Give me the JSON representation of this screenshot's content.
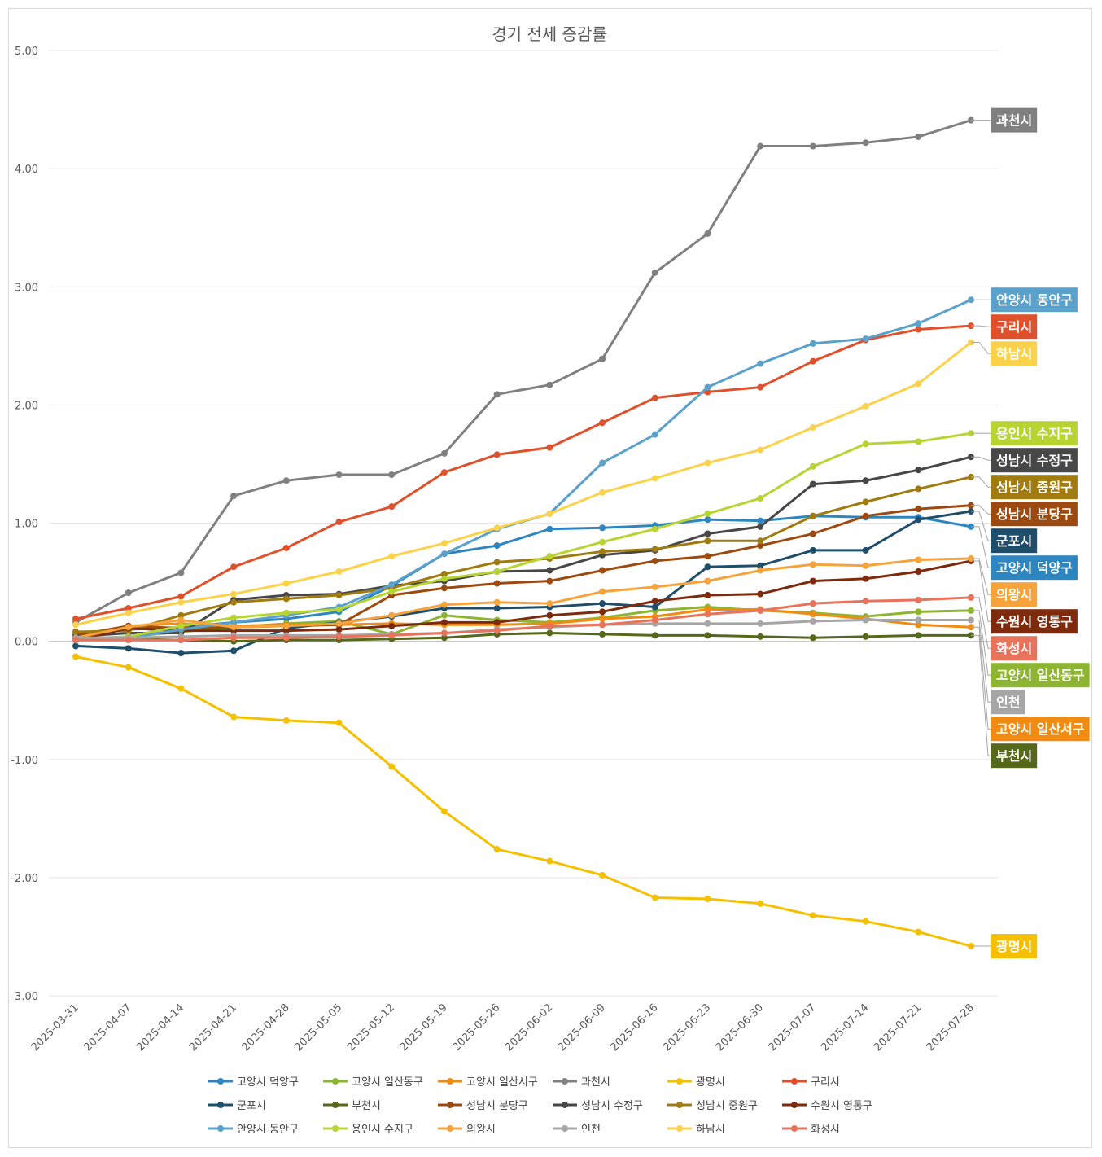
{
  "chart_data": {
    "type": "line",
    "title": "경기 전세 증감률",
    "xlabel": "",
    "ylabel": "",
    "ylim": [
      -3.0,
      5.0
    ],
    "yticks": [
      "5.00",
      "4.00",
      "3.00",
      "2.00",
      "1.00",
      "0.00",
      "-1.00",
      "-2.00",
      "-3.00"
    ],
    "grid": true,
    "legend_position": "bottom",
    "x": [
      "2025-03-31",
      "2025-04-07",
      "2025-04-14",
      "2025-04-21",
      "2025-04-28",
      "2025-05-05",
      "2025-05-12",
      "2025-05-19",
      "2025-05-26",
      "2025-06-02",
      "2025-06-09",
      "2025-06-16",
      "2025-06-23",
      "2025-06-30",
      "2025-07-07",
      "2025-07-14",
      "2025-07-21",
      "2025-07-28"
    ],
    "series": [
      {
        "name": "고양시 덕양구",
        "color": "#2e86c1",
        "values": [
          0.05,
          0.1,
          0.12,
          0.16,
          0.19,
          0.25,
          0.47,
          0.74,
          0.81,
          0.95,
          0.96,
          0.98,
          1.03,
          1.02,
          1.06,
          1.05,
          1.05,
          0.97
        ]
      },
      {
        "name": "고양시 일산동구",
        "color": "#8db531",
        "values": [
          0.02,
          0.04,
          0.08,
          0.12,
          0.15,
          0.17,
          0.06,
          0.22,
          0.18,
          0.16,
          0.2,
          0.26,
          0.29,
          0.26,
          0.24,
          0.21,
          0.25,
          0.26
        ]
      },
      {
        "name": "고양시 일산서구",
        "color": "#f28b12",
        "values": [
          0.05,
          0.13,
          0.15,
          0.13,
          0.14,
          0.14,
          0.15,
          0.14,
          0.14,
          0.15,
          0.19,
          0.21,
          0.27,
          0.27,
          0.23,
          0.19,
          0.14,
          0.12
        ]
      },
      {
        "name": "과천시",
        "color": "#808080",
        "values": [
          0.16,
          0.41,
          0.58,
          1.23,
          1.36,
          1.41,
          1.41,
          1.59,
          2.09,
          2.17,
          2.39,
          3.12,
          3.45,
          4.19,
          4.19,
          4.22,
          4.27,
          4.41
        ]
      },
      {
        "name": "광명시",
        "color": "#f5c000",
        "values": [
          -0.13,
          -0.22,
          -0.4,
          -0.64,
          -0.67,
          -0.69,
          -1.06,
          -1.44,
          -1.76,
          -1.86,
          -1.98,
          -2.17,
          -2.18,
          -2.22,
          -2.32,
          -2.37,
          -2.46,
          -2.58
        ]
      },
      {
        "name": "구리시",
        "color": "#e0502a",
        "values": [
          0.19,
          0.28,
          0.38,
          0.63,
          0.79,
          1.01,
          1.14,
          1.43,
          1.58,
          1.64,
          1.85,
          2.06,
          2.11,
          2.15,
          2.37,
          2.55,
          2.64,
          2.67
        ]
      },
      {
        "name": "군포시",
        "color": "#1f4e6b",
        "values": [
          -0.04,
          -0.06,
          -0.1,
          -0.08,
          0.11,
          0.16,
          0.21,
          0.28,
          0.28,
          0.29,
          0.32,
          0.29,
          0.63,
          0.64,
          0.77,
          0.77,
          1.03,
          1.1
        ]
      },
      {
        "name": "부천시",
        "color": "#56691b",
        "values": [
          0.02,
          0.02,
          0.01,
          0.0,
          0.01,
          0.01,
          0.02,
          0.03,
          0.06,
          0.07,
          0.06,
          0.05,
          0.05,
          0.04,
          0.03,
          0.04,
          0.05,
          0.05
        ]
      },
      {
        "name": "성남시 분당구",
        "color": "#9c4a10",
        "values": [
          0.05,
          0.13,
          0.11,
          0.12,
          0.13,
          0.14,
          0.39,
          0.45,
          0.49,
          0.51,
          0.6,
          0.68,
          0.72,
          0.81,
          0.91,
          1.06,
          1.12,
          1.15
        ]
      },
      {
        "name": "성남시 수정구",
        "color": "#474747",
        "values": [
          0.04,
          0.07,
          0.07,
          0.35,
          0.39,
          0.4,
          0.47,
          0.51,
          0.59,
          0.6,
          0.73,
          0.77,
          0.91,
          0.97,
          1.33,
          1.36,
          1.45,
          1.56
        ]
      },
      {
        "name": "성남시 중원구",
        "color": "#a07c10",
        "values": [
          0.08,
          0.09,
          0.22,
          0.33,
          0.36,
          0.39,
          0.45,
          0.57,
          0.67,
          0.7,
          0.76,
          0.78,
          0.85,
          0.85,
          1.06,
          1.18,
          1.29,
          1.39
        ]
      },
      {
        "name": "수원시 영통구",
        "color": "#7d2a0d",
        "values": [
          0.01,
          0.11,
          0.09,
          0.09,
          0.09,
          0.1,
          0.13,
          0.16,
          0.16,
          0.22,
          0.25,
          0.34,
          0.39,
          0.4,
          0.51,
          0.53,
          0.59,
          0.68
        ]
      },
      {
        "name": "안양시 동안구",
        "color": "#5aa1cc",
        "values": [
          0.01,
          0.03,
          0.1,
          0.16,
          0.22,
          0.29,
          0.48,
          0.74,
          0.95,
          1.08,
          1.51,
          1.75,
          2.15,
          2.35,
          2.52,
          2.56,
          2.69,
          2.89
        ]
      },
      {
        "name": "용인시 수지구",
        "color": "#b8d433",
        "values": [
          0.01,
          0.04,
          0.13,
          0.2,
          0.24,
          0.27,
          0.42,
          0.53,
          0.59,
          0.72,
          0.84,
          0.95,
          1.08,
          1.21,
          1.48,
          1.67,
          1.69,
          1.76
        ]
      },
      {
        "name": "의왕시",
        "color": "#f5a33a",
        "values": [
          0.03,
          0.12,
          0.18,
          0.12,
          0.13,
          0.15,
          0.22,
          0.31,
          0.33,
          0.32,
          0.42,
          0.46,
          0.51,
          0.6,
          0.65,
          0.64,
          0.69,
          0.7
        ]
      },
      {
        "name": "인천",
        "color": "#a6a6a6",
        "values": [
          0.03,
          0.03,
          0.04,
          0.05,
          0.05,
          0.05,
          0.06,
          0.07,
          0.1,
          0.12,
          0.14,
          0.15,
          0.15,
          0.15,
          0.17,
          0.18,
          0.18,
          0.18
        ]
      },
      {
        "name": "하남시",
        "color": "#fcd24a",
        "values": [
          0.14,
          0.24,
          0.33,
          0.4,
          0.49,
          0.59,
          0.72,
          0.83,
          0.96,
          1.08,
          1.26,
          1.38,
          1.51,
          1.62,
          1.81,
          1.99,
          2.18,
          2.53
        ]
      },
      {
        "name": "화성시",
        "color": "#e8735a",
        "values": [
          0.01,
          0.01,
          0.01,
          0.03,
          0.03,
          0.04,
          0.05,
          0.07,
          0.09,
          0.13,
          0.14,
          0.18,
          0.23,
          0.26,
          0.32,
          0.34,
          0.35,
          0.37
        ]
      }
    ],
    "end_labels": [
      {
        "series": "과천시",
        "text": "과천시",
        "bg": "#808080",
        "fg": "#ffffff"
      },
      {
        "series": "안양시 동안구",
        "text": "안양시 동안구",
        "bg": "#5aa1cc",
        "fg": "#ffffff"
      },
      {
        "series": "구리시",
        "text": "구리시",
        "bg": "#e0502a",
        "fg": "#ffffff"
      },
      {
        "series": "하남시",
        "text": "하남시",
        "bg": "#fcd24a",
        "fg": "#ffffff"
      },
      {
        "series": "용인시 수지구",
        "text": "용인시 수지구",
        "bg": "#b8d433",
        "fg": "#ffffff"
      },
      {
        "series": "성남시 수정구",
        "text": "성남시 수정구",
        "bg": "#474747",
        "fg": "#ffffff"
      },
      {
        "series": "성남시 중원구",
        "text": "성남시 중원구",
        "bg": "#a07c10",
        "fg": "#ffffff"
      },
      {
        "series": "성남시 분당구",
        "text": "성남시 분당구",
        "bg": "#9c4a10",
        "fg": "#ffffff"
      },
      {
        "series": "군포시",
        "text": "군포시",
        "bg": "#1f4e6b",
        "fg": "#ffffff"
      },
      {
        "series": "고양시 덕양구",
        "text": "고양시 덕양구",
        "bg": "#2e86c1",
        "fg": "#ffffff"
      },
      {
        "series": "의왕시",
        "text": "의왕시",
        "bg": "#f5a33a",
        "fg": "#ffffff"
      },
      {
        "series": "수원시 영통구",
        "text": "수원시 영통구",
        "bg": "#7d2a0d",
        "fg": "#ffffff"
      },
      {
        "series": "화성시",
        "text": "화성시",
        "bg": "#e8735a",
        "fg": "#ffffff"
      },
      {
        "series": "고양시 일산동구",
        "text": "고양시 일산동구",
        "bg": "#8db531",
        "fg": "#ffffff"
      },
      {
        "series": "인천",
        "text": "인천",
        "bg": "#a6a6a6",
        "fg": "#ffffff"
      },
      {
        "series": "고양시 일산서구",
        "text": "고양시 일산서구",
        "bg": "#f28b12",
        "fg": "#ffffff"
      },
      {
        "series": "부천시",
        "text": "부천시",
        "bg": "#56691b",
        "fg": "#ffffff"
      },
      {
        "series": "광명시",
        "text": "광명시",
        "bg": "#f5c000",
        "fg": "#ffffff"
      }
    ]
  }
}
